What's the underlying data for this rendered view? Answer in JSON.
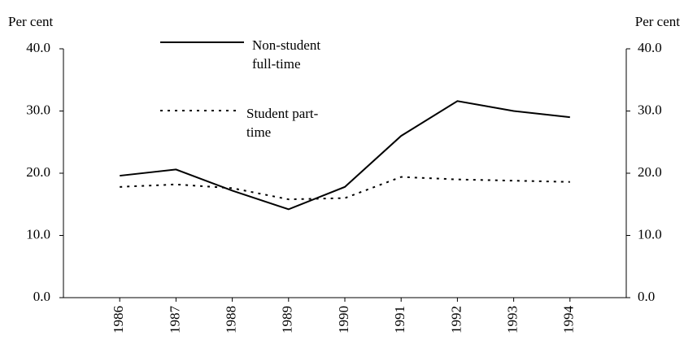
{
  "chart_data": {
    "type": "line",
    "ylabel": "Per cent",
    "y2label": "Per cent",
    "categories": [
      "1986",
      "1987",
      "1988",
      "1989",
      "1990",
      "1991",
      "1992",
      "1993",
      "1994"
    ],
    "series": [
      {
        "name": "Non-student full-time",
        "color": "#000000",
        "dash": "solid",
        "values": [
          19.6,
          20.6,
          17.2,
          14.2,
          17.8,
          26.0,
          31.6,
          30.0,
          29.0
        ]
      },
      {
        "name": "Student part-time",
        "color": "#000000",
        "dash": "dotted",
        "values": [
          17.8,
          18.2,
          17.6,
          15.8,
          16.0,
          19.4,
          19.0,
          18.8,
          18.6
        ]
      }
    ],
    "ylim": [
      0,
      40
    ],
    "yticks": [
      {
        "value": 0,
        "label": "0.0"
      },
      {
        "value": 10,
        "label": "10.0"
      },
      {
        "value": 20,
        "label": "20.0"
      },
      {
        "value": 30,
        "label": "30.0"
      },
      {
        "value": 40,
        "label": "40.0"
      }
    ],
    "y2lim": [
      0,
      40
    ],
    "y2ticks": [
      {
        "value": 0,
        "label": "0.0"
      },
      {
        "value": 10,
        "label": "10.0"
      },
      {
        "value": 20,
        "label": "20.0"
      },
      {
        "value": 30,
        "label": "30.0"
      },
      {
        "value": 40,
        "label": "40.0"
      }
    ],
    "grid": false
  }
}
